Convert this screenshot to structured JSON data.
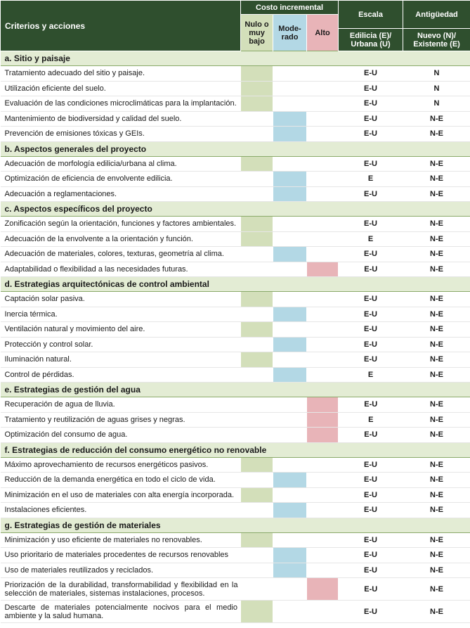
{
  "header": {
    "criteria_label": "Criterios y acciones",
    "cost_label": "Costo incremental",
    "cost_low": "Nulo o muy bajo",
    "cost_mod": "Mode-rado",
    "cost_high": "Alto",
    "scale_label": "Escala",
    "scale_sub": "Edilicia (E)/ Urbana (U)",
    "age_label": "Antigüedad",
    "age_sub": "Nuevo (N)/ Existente (E)"
  },
  "sections": [
    {
      "title": "a. Sitio y paisaje",
      "rows": [
        {
          "text": "Tratamiento adecuado del sitio y paisaje.",
          "cost": "low",
          "scale": "E-U",
          "age": "N"
        },
        {
          "text": "Utilización eficiente del suelo.",
          "cost": "low",
          "scale": "E-U",
          "age": "N"
        },
        {
          "text": "Evaluación de las condiciones microclimáticas para la implantación.",
          "cost": "low",
          "scale": "E-U",
          "age": "N"
        },
        {
          "text": "Mantenimiento de biodiversidad y calidad del suelo.",
          "cost": "mod",
          "scale": "E-U",
          "age": "N-E"
        },
        {
          "text": "Prevención de emisiones tóxicas y GEIs.",
          "cost": "mod",
          "scale": "E-U",
          "age": "N-E"
        }
      ]
    },
    {
      "title": "b. Aspectos generales del proyecto",
      "rows": [
        {
          "text": "Adecuación de morfología edilicia/urbana al clima.",
          "cost": "low",
          "scale": "E-U",
          "age": "N-E"
        },
        {
          "text": "Optimización de eficiencia de envolvente edilicia.",
          "cost": "mod",
          "scale": "E",
          "age": "N-E"
        },
        {
          "text": "Adecuación a reglamentaciones.",
          "cost": "mod",
          "scale": "E-U",
          "age": "N-E"
        }
      ]
    },
    {
      "title": "c. Aspectos específicos del proyecto",
      "rows": [
        {
          "text": "Zonificación según la orientación, funciones y factores ambientales.",
          "cost": "low",
          "scale": "E-U",
          "age": "N-E"
        },
        {
          "text": "Adecuación de la envolvente a la orientación y función.",
          "cost": "low",
          "scale": "E",
          "age": "N-E"
        },
        {
          "text": "Adecuación de materiales, colores, texturas, geometría al clima.",
          "cost": "mod",
          "scale": "E-U",
          "age": "N-E"
        },
        {
          "text": "Adaptabilidad o flexibilidad a las necesidades futuras.",
          "cost": "high",
          "scale": "E-U",
          "age": "N-E"
        }
      ]
    },
    {
      "title": "d. Estrategias arquitectónicas de control ambiental",
      "rows": [
        {
          "text": "Captación solar pasiva.",
          "cost": "low",
          "scale": "E-U",
          "age": "N-E"
        },
        {
          "text": "Inercia térmica.",
          "cost": "mod",
          "scale": "E-U",
          "age": "N-E"
        },
        {
          "text": "Ventilación natural y movimiento del aire.",
          "cost": "low",
          "scale": "E-U",
          "age": "N-E"
        },
        {
          "text": "Protección y control solar.",
          "cost": "mod",
          "scale": "E-U",
          "age": "N-E"
        },
        {
          "text": "Iluminación natural.",
          "cost": "low",
          "scale": "E-U",
          "age": "N-E"
        },
        {
          "text": "Control de pérdidas.",
          "cost": "mod",
          "scale": "E",
          "age": "N-E"
        }
      ]
    },
    {
      "title": "e. Estrategias de gestión del agua",
      "rows": [
        {
          "text": "Recuperación de agua de lluvia.",
          "cost": "high",
          "scale": "E-U",
          "age": "N-E"
        },
        {
          "text": "Tratamiento y reutilización de aguas grises y negras.",
          "cost": "high",
          "scale": "E",
          "age": "N-E"
        },
        {
          "text": "Optimización del consumo de agua.",
          "cost": "high",
          "scale": "E-U",
          "age": "N-E"
        }
      ]
    },
    {
      "title": "f. Estrategias de reducción del consumo energético no renovable",
      "rows": [
        {
          "text": "Máximo aprovechamiento de recursos energéticos pasivos.",
          "cost": "low",
          "scale": "E-U",
          "age": "N-E"
        },
        {
          "text": "Reducción de la demanda energética en todo el ciclo de vida.",
          "cost": "mod",
          "scale": "E-U",
          "age": "N-E"
        },
        {
          "text": "Minimización en el uso de materiales con alta energía incorporada.",
          "cost": "low",
          "scale": "E-U",
          "age": "N-E"
        },
        {
          "text": "Instalaciones eficientes.",
          "cost": "mod",
          "scale": "E-U",
          "age": "N-E"
        }
      ]
    },
    {
      "title": "g. Estrategias de gestión de materiales",
      "rows": [
        {
          "text": "Minimización y uso eficiente de materiales no renovables.",
          "cost": "low",
          "scale": "E-U",
          "age": "N-E"
        },
        {
          "text": "Uso prioritario de materiales procedentes de recursos renovables",
          "cost": "mod",
          "scale": "E-U",
          "age": "N-E"
        },
        {
          "text": "Uso de materiales reutilizados y reciclados.",
          "cost": "mod",
          "scale": "E-U",
          "age": "N-E"
        },
        {
          "text": "Priorización de la durabilidad, transformabilidad y flexibilidad en la selección de materiales, sistemas instalaciones, procesos.",
          "cost": "high",
          "scale": "E-U",
          "age": "N-E"
        },
        {
          "text": "Descarte de materiales potencialmente nocivos para el medio ambiente y la salud humana.",
          "cost": "low",
          "scale": "E-U",
          "age": "N-E"
        }
      ]
    }
  ]
}
